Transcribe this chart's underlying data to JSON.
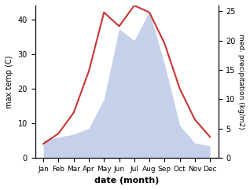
{
  "months": [
    "Jan",
    "Feb",
    "Mar",
    "Apr",
    "May",
    "Jun",
    "Jul",
    "Aug",
    "Sep",
    "Oct",
    "Nov",
    "Dec"
  ],
  "temperature": [
    4,
    7,
    13,
    25,
    42,
    38,
    44,
    42,
    33,
    20,
    11,
    6
  ],
  "precipitation": [
    3,
    3.5,
    4,
    5,
    10,
    22,
    20,
    25,
    16,
    5.5,
    2.5,
    2
  ],
  "temp_color": "#cc3333",
  "precip_fill_color": "#c5d0ea",
  "ylabel_left": "max temp (C)",
  "ylabel_right": "med. precipitation (kg/m2)",
  "xlabel": "date (month)",
  "ylim_left": [
    0,
    44
  ],
  "ylim_right": [
    0,
    26
  ],
  "yticks_left": [
    0,
    10,
    20,
    30,
    40
  ],
  "yticks_right": [
    0,
    5,
    10,
    15,
    20,
    25
  ],
  "bg_color": "#ffffff"
}
